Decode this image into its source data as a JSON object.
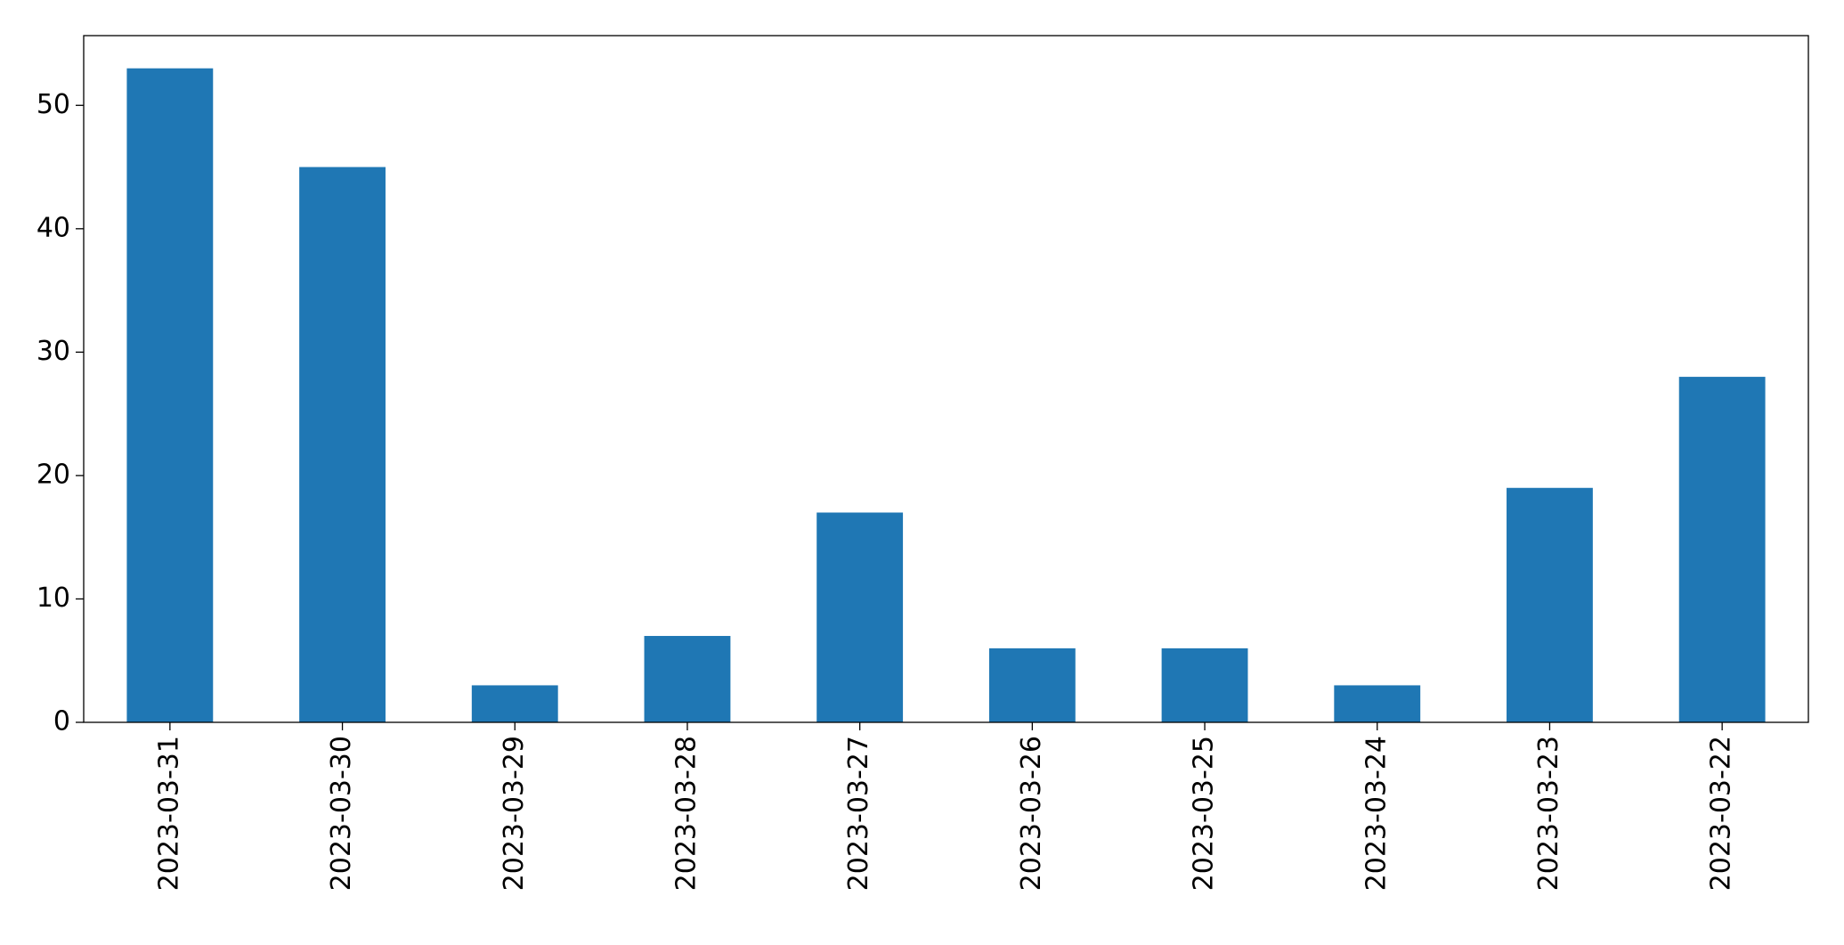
{
  "chart_data": {
    "type": "bar",
    "categories": [
      "2023-03-31",
      "2023-03-30",
      "2023-03-29",
      "2023-03-28",
      "2023-03-27",
      "2023-03-26",
      "2023-03-25",
      "2023-03-24",
      "2023-03-23",
      "2023-03-22"
    ],
    "values": [
      53,
      45,
      3,
      7,
      17,
      6,
      6,
      3,
      19,
      28
    ],
    "color": "#1f77b4",
    "ylim": [
      0,
      55.65
    ],
    "yticks": [
      0,
      10,
      20,
      30,
      40,
      50
    ],
    "grid": false
  }
}
